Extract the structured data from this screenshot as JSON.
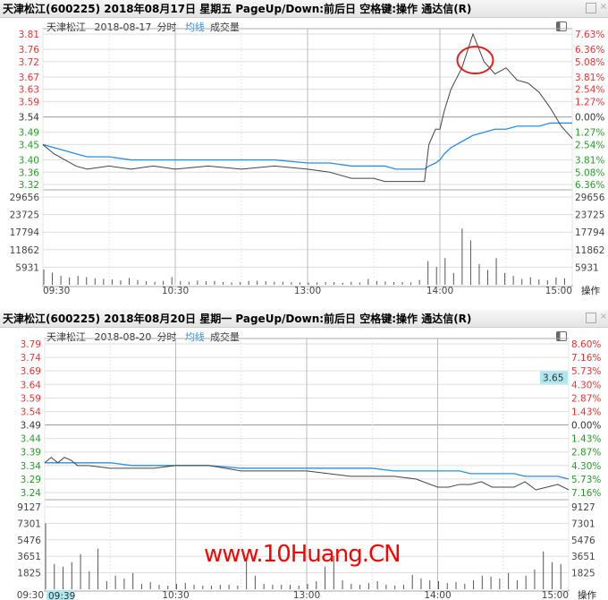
{
  "panels": [
    {
      "title": "天津松江(600225) 2018年08月17日 星期五 PageUp/Down:前后日 空格键:操作 通达信(R)",
      "stock": "天津松江",
      "date": "2018-08-17",
      "tab_minute": "分时",
      "tab_avg": "均线",
      "tab_volume": "成交量",
      "price_labels": [
        "3.81",
        "3.76",
        "3.72",
        "3.67",
        "3.63",
        "3.59",
        "3.54",
        "3.49",
        "3.45",
        "3.40",
        "3.36",
        "3.32"
      ],
      "pct_labels": [
        "7.63%",
        "6.36%",
        "5.08%",
        "3.81%",
        "2.54%",
        "1.27%",
        "0.00%",
        "1.27%",
        "2.54%",
        "3.81%",
        "5.08%",
        "6.36%"
      ],
      "vol_labels": [
        "29656",
        "23725",
        "17794",
        "11862",
        "5931"
      ],
      "time_labels": [
        "09:30",
        "10:30",
        "13:00",
        "14:00",
        "15:00"
      ],
      "action_label": "操作",
      "highlight": "circle around 14:20 spike"
    },
    {
      "title": "天津松江(600225) 2018年08月20日 星期一 PageUp/Down:前后日 空格键:操作 通达信(R)",
      "stock": "天津松江",
      "date": "2018-08-20",
      "tab_minute": "分时",
      "tab_avg": "均线",
      "tab_volume": "成交量",
      "price_labels": [
        "3.79",
        "3.74",
        "3.69",
        "3.64",
        "3.59",
        "3.54",
        "3.49",
        "3.44",
        "3.39",
        "3.34",
        "3.29",
        "3.24"
      ],
      "pct_labels": [
        "8.60%",
        "7.16%",
        "5.73%",
        "4.30%",
        "2.87%",
        "1.43%",
        "0.00%",
        "1.43%",
        "2.87%",
        "4.30%",
        "5.73%",
        "7.16%"
      ],
      "vol_labels": [
        "9127",
        "7301",
        "5476",
        "3651",
        "1825"
      ],
      "time_labels": [
        "09:30",
        "10:30",
        "13:00",
        "14:00",
        "15:00"
      ],
      "cursor_time": "09:39",
      "cursor_price": "3.65",
      "action_label": "操作"
    }
  ],
  "watermark": "www.10Huang.CN",
  "colors": {
    "up": "#f03030",
    "down": "#20a020",
    "flat": "#333333",
    "price": "#444444",
    "avg": "#2a8de0",
    "cursor": "#aee8ee"
  },
  "chart_data": [
    {
      "type": "line",
      "date": "2018-08-17",
      "prev_close": 3.54,
      "minutes": [
        0,
        5,
        10,
        15,
        20,
        30,
        40,
        50,
        60,
        75,
        90,
        105,
        120,
        130,
        140,
        150,
        155,
        160,
        165,
        170,
        173,
        175,
        178,
        180,
        182,
        185,
        190,
        195,
        200,
        205,
        210,
        215,
        220,
        225,
        230,
        235,
        240
      ],
      "price": [
        3.45,
        3.42,
        3.4,
        3.38,
        3.37,
        3.38,
        3.37,
        3.38,
        3.37,
        3.38,
        3.37,
        3.38,
        3.37,
        3.36,
        3.34,
        3.34,
        3.33,
        3.33,
        3.33,
        3.33,
        3.33,
        3.45,
        3.5,
        3.5,
        3.56,
        3.63,
        3.7,
        3.81,
        3.72,
        3.68,
        3.7,
        3.66,
        3.65,
        3.62,
        3.57,
        3.51,
        3.47
      ],
      "avg": [
        3.45,
        3.44,
        3.43,
        3.42,
        3.41,
        3.41,
        3.4,
        3.4,
        3.4,
        3.4,
        3.4,
        3.4,
        3.39,
        3.39,
        3.38,
        3.38,
        3.38,
        3.37,
        3.37,
        3.37,
        3.37,
        3.38,
        3.39,
        3.4,
        3.42,
        3.44,
        3.46,
        3.48,
        3.49,
        3.5,
        3.5,
        3.51,
        3.51,
        3.51,
        3.52,
        3.52,
        3.52
      ],
      "volume": [
        5200,
        4100,
        3000,
        2500,
        3000,
        2600,
        2200,
        2000,
        1800,
        1500,
        2300,
        1600,
        1200,
        1000,
        1300,
        2600,
        1200,
        1000,
        1400,
        1200,
        1300,
        900,
        800,
        900,
        1300,
        1400,
        1200,
        1000,
        1000,
        900,
        800,
        700,
        800,
        900,
        900,
        700,
        1000,
        800,
        2000,
        1300,
        1100,
        900,
        900,
        800,
        1600,
        8000,
        6000,
        9000,
        4000,
        19000,
        15000,
        7000,
        5000,
        9000,
        4000,
        3000,
        2000,
        2500,
        1800,
        1500,
        2500,
        2200
      ]
    },
    {
      "type": "line",
      "date": "2018-08-20",
      "prev_close": 3.49,
      "minutes": [
        0,
        3,
        6,
        9,
        12,
        15,
        20,
        30,
        40,
        50,
        60,
        75,
        90,
        105,
        120,
        130,
        140,
        150,
        160,
        170,
        180,
        185,
        190,
        195,
        200,
        205,
        210,
        215,
        220,
        225,
        230,
        235,
        240
      ],
      "price": [
        3.35,
        3.37,
        3.35,
        3.37,
        3.36,
        3.34,
        3.34,
        3.33,
        3.33,
        3.33,
        3.34,
        3.34,
        3.32,
        3.32,
        3.32,
        3.31,
        3.3,
        3.3,
        3.3,
        3.29,
        3.26,
        3.26,
        3.27,
        3.27,
        3.28,
        3.26,
        3.26,
        3.26,
        3.28,
        3.25,
        3.26,
        3.27,
        3.25
      ],
      "avg": [
        3.35,
        3.35,
        3.35,
        3.35,
        3.35,
        3.35,
        3.35,
        3.35,
        3.34,
        3.34,
        3.34,
        3.34,
        3.33,
        3.33,
        3.33,
        3.33,
        3.33,
        3.33,
        3.32,
        3.32,
        3.32,
        3.32,
        3.32,
        3.31,
        3.31,
        3.31,
        3.31,
        3.31,
        3.3,
        3.3,
        3.3,
        3.3,
        3.29
      ],
      "volume": [
        7300,
        2800,
        2500,
        3000,
        3900,
        2000,
        4500,
        900,
        1500,
        1200,
        1800,
        600,
        800,
        500,
        400,
        600,
        700,
        500,
        400,
        400,
        500,
        500,
        400,
        3500,
        1500,
        600,
        500,
        500,
        500,
        400,
        600,
        900,
        2500,
        3700,
        1000,
        600,
        500,
        700,
        900,
        500,
        400,
        500,
        1600,
        1200,
        1000,
        900,
        700,
        800,
        600,
        1000,
        1500,
        1400,
        1200,
        1800,
        1000,
        1500,
        2200,
        4200,
        3000,
        2800
      ]
    }
  ]
}
